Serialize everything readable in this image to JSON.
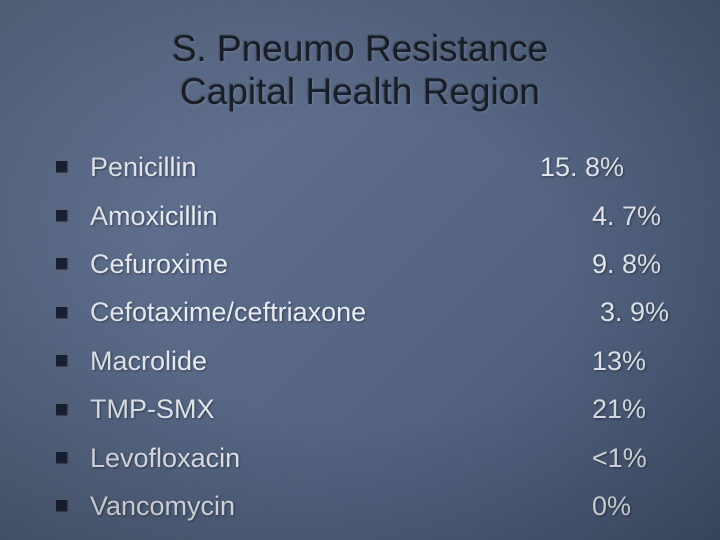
{
  "title": {
    "line1": "S. Pneumo Resistance",
    "line2": "Capital Health Region",
    "color": "#1a1f2b",
    "fontsize": 37
  },
  "list": {
    "bullet_color": "#1b2236",
    "text_color": "#e8ecf5",
    "fontsize": 27,
    "items": [
      {
        "label": "Penicillin",
        "value": "15. 8%",
        "value_pad": 0
      },
      {
        "label": "Amoxicillin",
        "value": "4. 7%",
        "value_pad": 52
      },
      {
        "label": "Cefuroxime",
        "value": "9. 8%",
        "value_pad": 52
      },
      {
        "label": "Cefotaxime/ceftriaxone",
        "value": "3. 9%",
        "value_pad": 60
      },
      {
        "label": "Macrolide",
        "value": "13%",
        "value_pad": 52
      },
      {
        "label": "TMP-SMX",
        "value": "21%",
        "value_pad": 52
      },
      {
        "label": "Levofloxacin",
        "value": "<1%",
        "value_pad": 52
      },
      {
        "label": "Vancomycin",
        "value": "0%",
        "value_pad": 52
      }
    ]
  },
  "background": {
    "gradient_from": "#6a7a9a",
    "gradient_to": "#4a5a78"
  }
}
